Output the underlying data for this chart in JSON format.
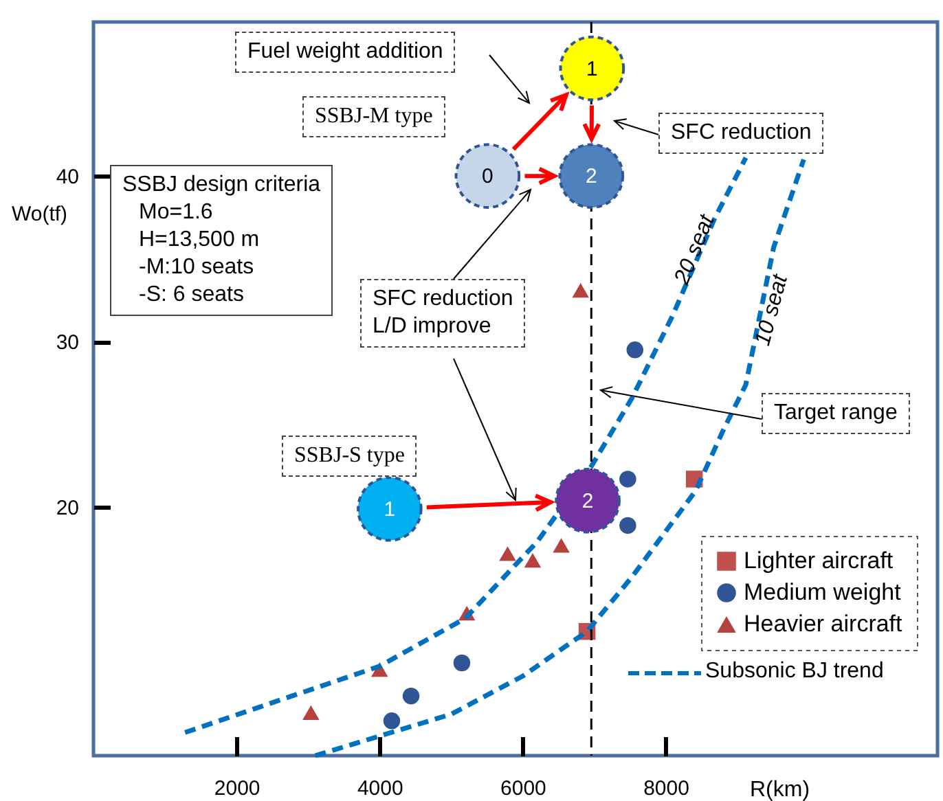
{
  "chart_data": {
    "type": "scatter",
    "xlabel": "R(km)",
    "ylabel": "Wo(tf)",
    "xlim": [
      0,
      11800
    ],
    "ylim": [
      5,
      49.3
    ],
    "xticks": [
      2000,
      4000,
      6000,
      8000
    ],
    "yticks": [
      20,
      30,
      40
    ],
    "grid": false,
    "legend": "bottom right",
    "series": [
      {
        "name": "Lighter aircraft",
        "marker": "square",
        "color": "#c0504d",
        "x": [
          8400,
          6900
        ],
        "values": [
          21.7,
          12.5
        ]
      },
      {
        "name": "Medium weight",
        "marker": "circle",
        "color": "#2f5597",
        "x": [
          7570,
          7470,
          7470,
          5150,
          4440,
          4170
        ],
        "values": [
          29.5,
          21.7,
          18.9,
          10.6,
          8.6,
          7.1
        ]
      },
      {
        "name": "Heavier aircraft",
        "marker": "triangle",
        "color": "#b5423e",
        "x": [
          6810,
          3040,
          4000,
          5220,
          5790,
          6140,
          6540
        ],
        "values": [
          33.1,
          7.6,
          10.2,
          13.6,
          17.2,
          16.8,
          17.7
        ]
      },
      {
        "name": "20 seat",
        "type": "line",
        "line_style": "dashed",
        "color": "#0070c0",
        "x": [
          1280,
          2500,
          4000,
          5200,
          6200,
          6950,
          7530,
          8100,
          8680,
          9120
        ],
        "values": [
          6.4,
          8.2,
          10.4,
          13.3,
          17.9,
          22.4,
          26.6,
          31.6,
          37.4,
          41.1
        ]
      },
      {
        "name": "10 seat",
        "type": "line",
        "line_style": "dashed",
        "color": "#0070c0",
        "x": [
          3100,
          5000,
          6000,
          6900,
          7530,
          8420,
          8810,
          9120,
          9510,
          9930
        ],
        "values": [
          5.0,
          7.5,
          9.8,
          12.5,
          15.8,
          21.0,
          24.7,
          27.4,
          35.7,
          41.0
        ]
      },
      {
        "marker": "circle",
        "colors": [
          "#c5d5ea",
          "#ffff00",
          "#4f81bd",
          "#00b0f0",
          "#7030a0"
        ],
        "x": [
          5510,
          6970,
          6960,
          4140,
          6910
        ],
        "values": [
          40.0,
          46.5,
          40.0,
          19.9,
          20.4
        ]
      }
    ],
    "ref_lines": [
      {
        "axis": "x",
        "value": 6960,
        "label": "Target range",
        "color": "#000000",
        "line_style": "dashed"
      }
    ],
    "annotations": [
      "Fuel weight addition",
      "SSBJ-M type",
      "SFC reduction",
      "SSBJ design criteria",
      "Mo=1.6",
      "H=13,500 m",
      "-M:10 seats",
      "-S: 6 seats",
      "SFC reduction",
      "L/D improve",
      "SSBJ-S type",
      "Subsonic BJ trend",
      {
        "text": "0",
        "x": 5510,
        "y": 40.0
      },
      {
        "text": "1",
        "x": 6970,
        "y": 46.5
      },
      {
        "text": "2",
        "x": 6960,
        "y": 40.0
      },
      {
        "text": "1",
        "x": 4140,
        "y": 19.9
      },
      {
        "text": "2",
        "x": 6910,
        "y": 20.4
      }
    ]
  }
}
